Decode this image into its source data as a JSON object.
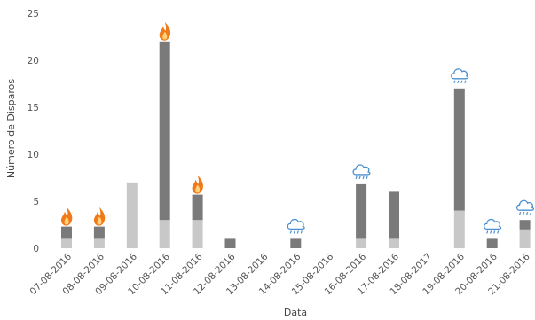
{
  "chart_data": {
    "type": "bar",
    "stacked": true,
    "xlabel": "Data",
    "ylabel": "Número de Disparos",
    "ylim": [
      0,
      25
    ],
    "yticks": [
      0,
      5,
      10,
      15,
      20,
      25
    ],
    "grid": false,
    "categories": [
      "07-08-2016",
      "08-08-2016",
      "09-08-2016",
      "10-08-2016",
      "11-08-2016",
      "12-08-2016",
      "13-08-2016",
      "14-08-2016",
      "15-08-2016",
      "16-08-2016",
      "17-08-2016",
      "18-08-2017",
      "19-08-2016",
      "20-08-2016",
      "21-08-2016"
    ],
    "series": [
      {
        "color": "#c8c8c8",
        "values": [
          1,
          1,
          7,
          3,
          3,
          0,
          0,
          0,
          0,
          1,
          1,
          0,
          4,
          0,
          2
        ]
      },
      {
        "color": "#7a7a7a",
        "values": [
          1.3,
          1.3,
          0,
          19,
          2.7,
          1,
          0,
          1,
          0,
          5.8,
          5,
          0,
          13,
          1,
          1
        ]
      }
    ],
    "annotations": [
      {
        "category": "07-08-2016",
        "icon": "fire-icon"
      },
      {
        "category": "08-08-2016",
        "icon": "fire-icon"
      },
      {
        "category": "10-08-2016",
        "icon": "fire-icon"
      },
      {
        "category": "11-08-2016",
        "icon": "fire-icon"
      },
      {
        "category": "14-08-2016",
        "icon": "rain-cloud-icon"
      },
      {
        "category": "16-08-2016",
        "icon": "rain-cloud-icon"
      },
      {
        "category": "19-08-2016",
        "icon": "rain-cloud-icon"
      },
      {
        "category": "20-08-2016",
        "icon": "rain-cloud-icon"
      },
      {
        "category": "21-08-2016",
        "icon": "rain-cloud-icon"
      }
    ],
    "colors": {
      "fire": "#f07a1a",
      "cloud": "#4a8fd0"
    }
  }
}
